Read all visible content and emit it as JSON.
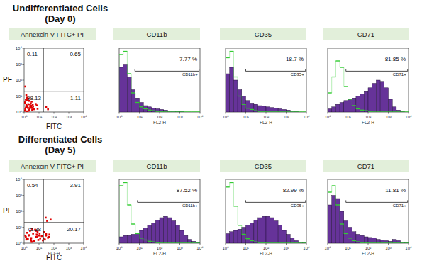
{
  "chart_data": [
    {
      "type": "scatter",
      "title": "Annexcin V FITC+ PI",
      "x_label": "FITC",
      "y_label": "PE",
      "log": true,
      "color": "#e00000",
      "marker": "square",
      "xlim": [
        1,
        10000
      ],
      "ylim": [
        1,
        10000
      ],
      "xticks": [
        {
          "value": 1,
          "label": "10⁰"
        },
        {
          "value": 10,
          "label": "10¹"
        },
        {
          "value": 100,
          "label": "10²"
        },
        {
          "value": 1000,
          "label": "10³"
        },
        {
          "value": 10000,
          "label": "10⁴"
        }
      ],
      "yticks": [
        {
          "value": 1,
          "label": "10⁰"
        },
        {
          "value": 10,
          "label": "10¹"
        },
        {
          "value": 100,
          "label": "10²"
        },
        {
          "value": 1000,
          "label": "10³"
        },
        {
          "value": 10000,
          "label": "10⁴"
        }
      ],
      "x": [
        1.2,
        1.5,
        2,
        2.5,
        3,
        1.1,
        1.8,
        2.2,
        3.5,
        4,
        1.3,
        1.6,
        2.8,
        5,
        1.4,
        2.1,
        3.2,
        1.9,
        2.6,
        6,
        1.1,
        1.7,
        2.4,
        3.8,
        4.5,
        1.2,
        2.9,
        1.5,
        7,
        2.3,
        1.3,
        1.9,
        3.3,
        1.6,
        2.7,
        8,
        1.4,
        30,
        40,
        1.2
      ],
      "values": [
        1.5,
        2,
        1.2,
        3,
        2.5,
        4,
        1.8,
        5,
        1.4,
        2.2,
        6,
        1.1,
        3.5,
        1.6,
        2.8,
        1.3,
        4.5,
        7,
        2,
        3.2,
        1.2,
        2.4,
        1.7,
        2.9,
        1.5,
        3.8,
        2.1,
        5.5,
        2.6,
        1.4,
        1.9,
        3.1,
        1.8,
        8,
        2.3,
        1.6,
        12,
        2,
        1.5,
        40
      ],
      "quadrants": {
        "x": 20,
        "y": 20,
        "values": [
          0.11,
          0.65,
          98.13,
          1.11
        ]
      }
    },
    {
      "type": "histogram",
      "title": "CD11b",
      "x_label": "FL2-H",
      "log": "x",
      "tick_labels": "x",
      "xlim": [
        1,
        10000
      ],
      "ylim": [
        0,
        100
      ],
      "xticks": [
        {
          "value": 1,
          "label": "10⁰"
        },
        {
          "value": 10,
          "label": "10¹"
        },
        {
          "value": 100,
          "label": "10²"
        },
        {
          "value": 1000,
          "label": "10³"
        },
        {
          "value": 10000,
          "label": "10⁴"
        }
      ],
      "bins": [
        1,
        1.585,
        2.512,
        3.981,
        6.31,
        10,
        15.85,
        25.12,
        39.81,
        63.1,
        100,
        158.5,
        251.2,
        398.1,
        631,
        1000,
        1585,
        2512,
        3981,
        6310,
        10000
      ],
      "series": [
        {
          "type": "bar",
          "color": "#663399",
          "values": [
            70,
            75,
            55,
            35,
            22,
            15,
            10,
            8,
            6,
            5,
            4,
            3,
            2,
            2,
            1,
            1,
            0,
            0,
            0,
            0
          ]
        },
        {
          "type": "line",
          "color": "#33cc33",
          "line_style": "solid",
          "values": [
            90,
            95,
            60,
            30,
            15,
            8,
            5,
            3,
            2,
            1,
            1,
            0,
            0,
            0,
            0,
            0,
            0,
            0,
            0,
            0
          ]
        }
      ],
      "gate": {
        "range": [
          6,
          9000
        ],
        "label": "CD11b+",
        "value": 7.77,
        "value_label": "7.77 %"
      }
    },
    {
      "type": "histogram",
      "title": "CD35",
      "x_label": "FL2-H",
      "log": "x",
      "tick_labels": "x",
      "xlim": [
        1,
        10000
      ],
      "ylim": [
        0,
        100
      ],
      "xticks": [
        {
          "value": 1,
          "label": "10⁰"
        },
        {
          "value": 10,
          "label": "10¹"
        },
        {
          "value": 100,
          "label": "10²"
        },
        {
          "value": 1000,
          "label": "10³"
        },
        {
          "value": 10000,
          "label": "10⁴"
        }
      ],
      "bins": [
        1,
        1.585,
        2.512,
        3.981,
        6.31,
        10,
        15.85,
        25.12,
        39.81,
        63.1,
        100,
        158.5,
        251.2,
        398.1,
        631,
        1000,
        1585,
        2512,
        3981,
        6310,
        10000
      ],
      "series": [
        {
          "type": "bar",
          "color": "#663399",
          "values": [
            60,
            70,
            50,
            35,
            25,
            18,
            14,
            12,
            10,
            9,
            8,
            7,
            6,
            5,
            4,
            3,
            2,
            1,
            0,
            0
          ]
        },
        {
          "type": "line",
          "color": "#33cc33",
          "line_style": "solid",
          "values": [
            85,
            95,
            55,
            25,
            12,
            6,
            4,
            2,
            1,
            1,
            0,
            0,
            0,
            0,
            0,
            0,
            0,
            0,
            0,
            0
          ]
        }
      ],
      "gate": {
        "range": [
          10,
          9000
        ],
        "label": "CD35+",
        "value": 18.7,
        "value_label": "18.7 %"
      }
    },
    {
      "type": "histogram",
      "title": "CD71",
      "x_label": "FL2-H",
      "log": "x",
      "tick_labels": "x",
      "xlim": [
        1,
        10000
      ],
      "ylim": [
        0,
        100
      ],
      "xticks": [
        {
          "value": 1,
          "label": "10⁰"
        },
        {
          "value": 10,
          "label": "10¹"
        },
        {
          "value": 100,
          "label": "10²"
        },
        {
          "value": 1000,
          "label": "10³"
        },
        {
          "value": 10000,
          "label": "10⁴"
        }
      ],
      "bins": [
        1,
        1.585,
        2.512,
        3.981,
        6.31,
        10,
        15.85,
        25.12,
        39.81,
        63.1,
        100,
        158.5,
        251.2,
        398.1,
        631,
        1000,
        1585,
        2512,
        3981,
        6310,
        10000
      ],
      "series": [
        {
          "type": "bar",
          "color": "#663399",
          "values": [
            5,
            8,
            12,
            15,
            18,
            20,
            22,
            25,
            28,
            32,
            38,
            45,
            50,
            48,
            38,
            20,
            8,
            3,
            1,
            0
          ]
        },
        {
          "type": "line",
          "color": "#33cc33",
          "line_style": "solid",
          "values": [
            30,
            55,
            80,
            70,
            40,
            20,
            10,
            5,
            3,
            2,
            1,
            0,
            0,
            0,
            0,
            0,
            0,
            0,
            0,
            0
          ]
        }
      ],
      "gate": {
        "range": [
          8,
          9000
        ],
        "label": "CD71+",
        "value": 81.85,
        "value_label": "81.85 %"
      }
    },
    {
      "type": "scatter",
      "title": "Annexcin V FITC+ PI",
      "x_label": "FITC",
      "x_axis_name": "FL1-H",
      "y_label": "PE",
      "log": true,
      "color": "#e00000",
      "marker": "square",
      "xlim": [
        1,
        10000
      ],
      "ylim": [
        1,
        10000
      ],
      "xticks": [
        {
          "value": 1,
          "label": "10⁰"
        },
        {
          "value": 10,
          "label": "10¹"
        },
        {
          "value": 100,
          "label": "10²"
        },
        {
          "value": 1000,
          "label": "10³"
        },
        {
          "value": 10000,
          "label": "10⁴"
        }
      ],
      "yticks": [
        {
          "value": 1,
          "label": "10⁰"
        },
        {
          "value": 10,
          "label": "10¹"
        },
        {
          "value": 100,
          "label": "10²"
        },
        {
          "value": 1000,
          "label": "10³"
        },
        {
          "value": 10000,
          "label": "10⁴"
        }
      ],
      "x": [
        1.5,
        2,
        3,
        4,
        6,
        8,
        10,
        12,
        2.5,
        1.8,
        5,
        7,
        15,
        25,
        30,
        40,
        3.5,
        1.3,
        9,
        11,
        20,
        2.2,
        4.5,
        6.5,
        1.6,
        3,
        50,
        35,
        28,
        2.8,
        5.5,
        1.2,
        18,
        22,
        45,
        60,
        3.2,
        7.5,
        30,
        1.4
      ],
      "values": [
        2,
        3,
        1.5,
        4,
        2.5,
        5,
        3,
        2,
        6,
        1.8,
        1.3,
        3.5,
        2.8,
        1.7,
        3,
        2.2,
        8,
        2.5,
        1.6,
        4,
        2,
        3.2,
        1.4,
        6,
        4.5,
        2.1,
        3.5,
        25,
        40,
        1.9,
        7,
        3,
        1.5,
        5,
        2.5,
        30,
        1.2,
        2.6,
        3.8,
        1.7
      ],
      "quadrants": {
        "x": 20,
        "y": 20,
        "values": [
          0.54,
          3.91,
          75.38,
          20.17
        ]
      }
    },
    {
      "type": "histogram",
      "title": "CD11b",
      "x_label": "FL2-H",
      "log": "x",
      "tick_labels": "x",
      "xlim": [
        1,
        10000
      ],
      "ylim": [
        0,
        100
      ],
      "xticks": [
        {
          "value": 1,
          "label": "10⁰"
        },
        {
          "value": 10,
          "label": "10¹"
        },
        {
          "value": 100,
          "label": "10²"
        },
        {
          "value": 1000,
          "label": "10³"
        },
        {
          "value": 10000,
          "label": "10⁴"
        }
      ],
      "bins": [
        1,
        1.585,
        2.512,
        3.981,
        6.31,
        10,
        15.85,
        25.12,
        39.81,
        63.1,
        100,
        158.5,
        251.2,
        398.1,
        631,
        1000,
        1585,
        2512,
        3981,
        6310,
        10000
      ],
      "series": [
        {
          "type": "bar",
          "color": "#663399",
          "values": [
            10,
            12,
            12,
            14,
            16,
            20,
            24,
            28,
            32,
            36,
            40,
            42,
            40,
            35,
            28,
            20,
            12,
            6,
            3,
            1
          ]
        },
        {
          "type": "line",
          "color": "#33cc33",
          "line_style": "solid",
          "values": [
            90,
            95,
            60,
            30,
            15,
            8,
            5,
            3,
            2,
            1,
            0,
            0,
            0,
            0,
            0,
            0,
            0,
            0,
            0,
            0
          ]
        }
      ],
      "gate": {
        "range": [
          8,
          9000
        ],
        "label": "CD11b+",
        "value": 87.52,
        "value_label": "87.52 %"
      }
    },
    {
      "type": "histogram",
      "title": "CD35",
      "x_label": "FL2-H",
      "log": "x",
      "tick_labels": "x",
      "xlim": [
        1,
        10000
      ],
      "ylim": [
        0,
        100
      ],
      "xticks": [
        {
          "value": 1,
          "label": "10⁰"
        },
        {
          "value": 10,
          "label": "10¹"
        },
        {
          "value": 100,
          "label": "10²"
        },
        {
          "value": 1000,
          "label": "10³"
        },
        {
          "value": 10000,
          "label": "10⁴"
        }
      ],
      "bins": [
        1,
        1.585,
        2.512,
        3.981,
        6.31,
        10,
        15.85,
        25.12,
        39.81,
        63.1,
        100,
        158.5,
        251.2,
        398.1,
        631,
        1000,
        1585,
        2512,
        3981,
        6310,
        10000
      ],
      "series": [
        {
          "type": "bar",
          "color": "#663399",
          "values": [
            15,
            18,
            20,
            22,
            25,
            28,
            32,
            36,
            40,
            42,
            42,
            40,
            35,
            28,
            20,
            14,
            8,
            4,
            2,
            1
          ]
        },
        {
          "type": "line",
          "color": "#33cc33",
          "line_style": "solid",
          "values": [
            88,
            95,
            58,
            28,
            14,
            7,
            4,
            2,
            1,
            1,
            0,
            0,
            0,
            0,
            0,
            0,
            0,
            0,
            0,
            0
          ]
        }
      ],
      "gate": {
        "range": [
          10,
          9000
        ],
        "label": "CD35+",
        "value": 82.99,
        "value_label": "82.99 %"
      }
    },
    {
      "type": "histogram",
      "title": "CD71",
      "x_label": "FL2-H",
      "log": "x",
      "tick_labels": "x",
      "xlim": [
        1,
        10000
      ],
      "ylim": [
        0,
        100
      ],
      "xticks": [
        {
          "value": 1,
          "label": "10⁰"
        },
        {
          "value": 10,
          "label": "10¹"
        },
        {
          "value": 100,
          "label": "10²"
        },
        {
          "value": 1000,
          "label": "10³"
        },
        {
          "value": 10000,
          "label": "10⁴"
        }
      ],
      "bins": [
        1,
        1.585,
        2.512,
        3.981,
        6.31,
        10,
        15.85,
        25.12,
        39.81,
        63.1,
        100,
        158.5,
        251.2,
        398.1,
        631,
        1000,
        1585,
        2512,
        3981,
        6310,
        10000
      ],
      "series": [
        {
          "type": "bar",
          "color": "#663399",
          "values": [
            60,
            75,
            70,
            50,
            35,
            25,
            18,
            14,
            12,
            10,
            9,
            8,
            6,
            5,
            4,
            3,
            6,
            4,
            2,
            1
          ]
        },
        {
          "type": "line",
          "color": "#33cc33",
          "line_style": "solid",
          "values": [
            80,
            90,
            60,
            30,
            15,
            8,
            4,
            2,
            1,
            1,
            0,
            0,
            0,
            0,
            0,
            0,
            0,
            0,
            0,
            0
          ]
        }
      ],
      "gate": {
        "range": [
          8,
          9000
        ],
        "label": "CD71+",
        "value": 11.81,
        "value_label": "11.81 %"
      }
    }
  ],
  "groups": [
    {
      "title": "Undifferentiated Cells",
      "subtitle": "(Day 0)"
    },
    {
      "title": "Differentiated Cells",
      "subtitle": "(Day 5)"
    }
  ]
}
